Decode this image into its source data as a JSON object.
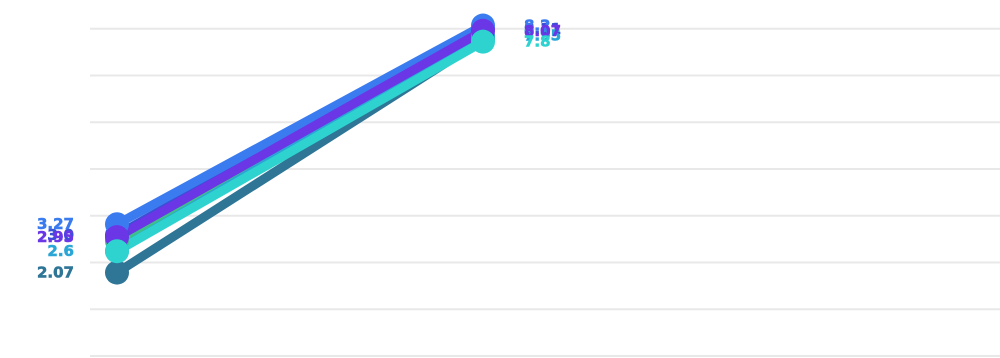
{
  "chart_data": {
    "type": "line",
    "categories": [
      "",
      ""
    ],
    "title": "",
    "xlabel": "",
    "ylabel": "",
    "ylim": [
      0,
      8.5
    ],
    "grid": true,
    "legend": "none",
    "series": [
      {
        "color": "#2e7596",
        "values": [
          2.07,
          7.86
        ],
        "labels": [
          "2.07",
          ""
        ]
      },
      {
        "color": "#3a4fd6",
        "values": [
          3.0,
          8.11
        ],
        "labels": [
          "3.0",
          "8.11"
        ]
      },
      {
        "color": "#3ec08a",
        "values": [
          2.85,
          7.9
        ],
        "labels": [
          "",
          ""
        ]
      },
      {
        "color": "#2aa6d6",
        "values": [
          2.6,
          7.95
        ],
        "labels": [
          "2.6",
          "7.95"
        ]
      },
      {
        "color": "#3a7cf0",
        "values": [
          3.27,
          8.2
        ],
        "labels": [
          "3.27",
          "8.2"
        ]
      },
      {
        "color": "#6a36e6",
        "values": [
          2.95,
          8.07
        ],
        "labels": [
          "2.95",
          "8.07"
        ]
      },
      {
        "color": "#2ed3cf",
        "values": [
          2.6,
          7.8
        ],
        "labels": [
          "",
          "7.8"
        ]
      }
    ]
  }
}
